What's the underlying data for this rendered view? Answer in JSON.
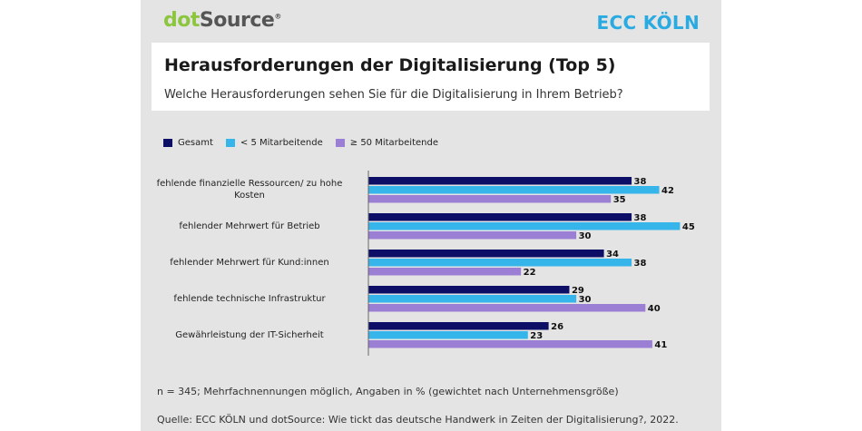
{
  "header": {
    "logo_left": {
      "part1": "dot",
      "part2": "Source",
      "mark": "®"
    },
    "logo_right": "ECC KÖLN"
  },
  "title": "Herausforderungen der Digitalisierung (Top 5)",
  "subtitle": "Welche Herausforderungen sehen Sie für die Digitalisierung in Ihrem Betrieb?",
  "footer": {
    "note": "n = 345; Mehrfachnennungen möglich, Angaben in % (gewichtet nach Unternehmensgröße)",
    "source": "Quelle: ECC KÖLN und dotSource: Wie tickt das deutsche Handwerk in Zeiten der Digitalisierung?, 2022."
  },
  "chart_data": {
    "type": "bar",
    "orientation": "horizontal",
    "title": "Herausforderungen der Digitalisierung (Top 5)",
    "subtitle": "Welche Herausforderungen sehen Sie für die Digitalisierung in Ihrem Betrieb?",
    "xlabel": "",
    "ylabel": "",
    "unit": "%",
    "xlim": [
      0,
      50
    ],
    "grid": false,
    "legend_position": "top-left",
    "categories": [
      "fehlende finanzielle Ressourcen/ zu hohe Kosten",
      "fehlender Mehrwert für Betrieb",
      "fehlender Mehrwert für Kund:innen",
      "fehlende technische Infrastruktur",
      "Gewährleistung der IT-Sicherheit"
    ],
    "series": [
      {
        "name": "Gesamt",
        "color": "#0d0e66",
        "values": [
          38,
          38,
          34,
          29,
          26
        ]
      },
      {
        "name": "< 5 Mitarbeitende",
        "color": "#35b5ea",
        "values": [
          42,
          45,
          38,
          30,
          23
        ]
      },
      {
        "name": "≥ 50 Mitarbeitende",
        "color": "#9b7fd4",
        "values": [
          35,
          30,
          22,
          40,
          41
        ]
      }
    ]
  }
}
